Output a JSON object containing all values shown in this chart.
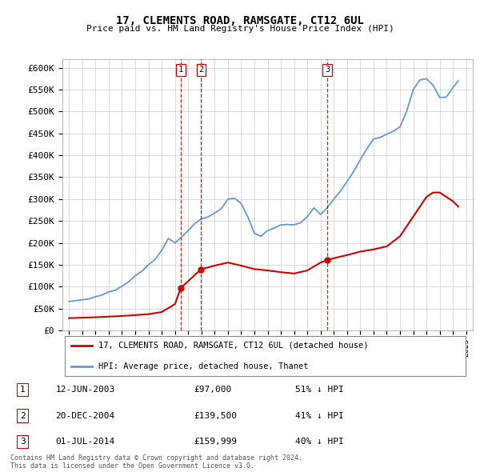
{
  "title": "17, CLEMENTS ROAD, RAMSGATE, CT12 6UL",
  "subtitle": "Price paid vs. HM Land Registry's House Price Index (HPI)",
  "legend_house": "17, CLEMENTS ROAD, RAMSGATE, CT12 6UL (detached house)",
  "legend_hpi": "HPI: Average price, detached house, Thanet",
  "footer1": "Contains HM Land Registry data © Crown copyright and database right 2024.",
  "footer2": "This data is licensed under the Open Government Licence v3.0.",
  "transactions": [
    {
      "num": 1,
      "date": "12-JUN-2003",
      "price": "£97,000",
      "pct": "51% ↓ HPI"
    },
    {
      "num": 2,
      "date": "20-DEC-2004",
      "price": "£139,500",
      "pct": "41% ↓ HPI"
    },
    {
      "num": 3,
      "date": "01-JUL-2014",
      "price": "£159,999",
      "pct": "40% ↓ HPI"
    }
  ],
  "sale_prices": [
    97000,
    139500,
    159999
  ],
  "sale_years": [
    2003.44,
    2004.97,
    2014.5
  ],
  "house_color": "#cc0000",
  "hpi_color": "#6699cc",
  "vline_color": "#cc0000",
  "ylim": [
    0,
    620000
  ],
  "xlim": [
    1994.5,
    2025.5
  ],
  "yticks": [
    0,
    50000,
    100000,
    150000,
    200000,
    250000,
    300000,
    350000,
    400000,
    450000,
    500000,
    550000,
    600000
  ],
  "ytick_labels": [
    "£0",
    "£50K",
    "£100K",
    "£150K",
    "£200K",
    "£250K",
    "£300K",
    "£350K",
    "£400K",
    "£450K",
    "£500K",
    "£550K",
    "£600K"
  ],
  "hpi_years": [
    1995.0,
    1995.5,
    1996.0,
    1996.5,
    1997.0,
    1997.5,
    1998.0,
    1998.5,
    1999.0,
    1999.5,
    2000.0,
    2000.5,
    2001.0,
    2001.5,
    2002.0,
    2002.5,
    2003.0,
    2003.5,
    2004.0,
    2004.5,
    2005.0,
    2005.5,
    2006.0,
    2006.5,
    2007.0,
    2007.5,
    2008.0,
    2008.5,
    2009.0,
    2009.5,
    2010.0,
    2010.5,
    2011.0,
    2011.5,
    2012.0,
    2012.5,
    2013.0,
    2013.5,
    2014.0,
    2014.5,
    2015.0,
    2015.5,
    2016.0,
    2016.5,
    2017.0,
    2017.5,
    2018.0,
    2018.5,
    2019.0,
    2019.5,
    2020.0,
    2020.5,
    2021.0,
    2021.5,
    2022.0,
    2022.5,
    2023.0,
    2023.5,
    2024.0,
    2024.4
  ],
  "hpi_values": [
    66000,
    68000,
    70000,
    72000,
    77000,
    81000,
    88000,
    92000,
    101000,
    111000,
    125000,
    135000,
    150000,
    162000,
    183000,
    210000,
    200000,
    213000,
    228000,
    244000,
    255000,
    259000,
    268000,
    278000,
    300000,
    302000,
    290000,
    260000,
    222000,
    215000,
    228000,
    234000,
    241000,
    242000,
    241000,
    246000,
    260000,
    280000,
    265000,
    280000,
    300000,
    318000,
    340000,
    363000,
    390000,
    415000,
    437000,
    441000,
    448000,
    455000,
    465000,
    500000,
    550000,
    572000,
    575000,
    560000,
    532000,
    533000,
    555000,
    570000
  ],
  "house_years": [
    1995.0,
    1996.0,
    1997.0,
    1998.0,
    1999.0,
    2000.0,
    2001.0,
    2002.0,
    2003.0,
    2003.44,
    2004.97,
    2006.0,
    2007.0,
    2008.0,
    2009.0,
    2010.0,
    2011.0,
    2012.0,
    2013.0,
    2014.0,
    2014.5,
    2015.0,
    2016.0,
    2017.0,
    2018.0,
    2019.0,
    2020.0,
    2021.0,
    2022.0,
    2022.5,
    2023.0,
    2023.5,
    2024.0,
    2024.4
  ],
  "house_values": [
    28000,
    29000,
    30000,
    31500,
    33000,
    35000,
    37000,
    42000,
    60000,
    97000,
    139500,
    148000,
    155000,
    148000,
    140000,
    137000,
    133000,
    130000,
    137000,
    155000,
    159999,
    165000,
    172000,
    180000,
    185000,
    192000,
    215000,
    260000,
    305000,
    315000,
    315000,
    305000,
    295000,
    283000
  ]
}
